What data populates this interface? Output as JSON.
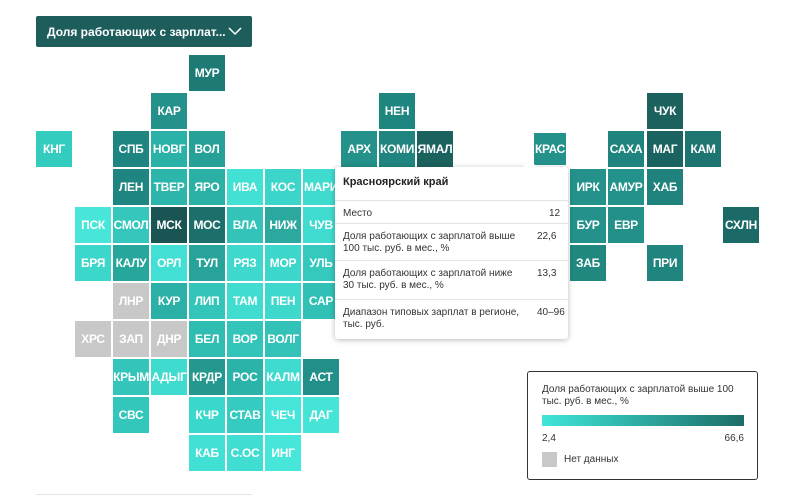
{
  "selector": {
    "label": "Доля работающих с зарплат..."
  },
  "colors": {
    "accent": "#1d5e5c",
    "scale_min": "#3fe6d9",
    "scale_max": "#1c6d68",
    "no_data": "#c8c8c8"
  },
  "regions": [
    {
      "code": "МУР",
      "shade": "#1d7a75"
    },
    {
      "code": "КАР",
      "shade": "#24918a"
    },
    {
      "code": "НЕН",
      "shade": "#1f857f"
    },
    {
      "code": "ЧУК",
      "shade": "#1b615e"
    },
    {
      "code": "КНГ",
      "shade": "#35ccc0"
    },
    {
      "code": "СПБ",
      "shade": "#1f8580"
    },
    {
      "code": "НОВГ",
      "shade": "#2bb2a8"
    },
    {
      "code": "ВОЛ",
      "shade": "#27a197"
    },
    {
      "code": "АРХ",
      "shade": "#24918a"
    },
    {
      "code": "КОМИ",
      "shade": "#21857f"
    },
    {
      "code": "ЯМАЛ",
      "shade": "#1b625f"
    },
    {
      "code": "КРАС",
      "shade": "#24928b"
    },
    {
      "code": "САХА",
      "shade": "#1f847e"
    },
    {
      "code": "МАГ",
      "shade": "#1b6360"
    },
    {
      "code": "КАМ",
      "shade": "#1d7470"
    },
    {
      "code": "ЛЕН",
      "shade": "#1f8580"
    },
    {
      "code": "ТВЕР",
      "shade": "#2cb5aa"
    },
    {
      "code": "ЯРО",
      "shade": "#2bb0a6"
    },
    {
      "code": "ИВА",
      "shade": "#43e0d4"
    },
    {
      "code": "КОС",
      "shade": "#3bd5c9"
    },
    {
      "code": "МАРИ",
      "shade": "#40dbcf"
    },
    {
      "code": "ИРК",
      "shade": "#24928b"
    },
    {
      "code": "АМУР",
      "shade": "#23928b"
    },
    {
      "code": "ХАБ",
      "shade": "#1f827c"
    },
    {
      "code": "ПСК",
      "shade": "#48e6d9"
    },
    {
      "code": "СМОЛ",
      "shade": "#36c7bc"
    },
    {
      "code": "МСК",
      "shade": "#1b5553"
    },
    {
      "code": "МОС",
      "shade": "#1d6f6b"
    },
    {
      "code": "ВЛА",
      "shade": "#33c3b8"
    },
    {
      "code": "НИЖ",
      "shade": "#2ba99f"
    },
    {
      "code": "ЧУВ",
      "shade": "#40dcd0"
    },
    {
      "code": "БУР",
      "shade": "#24918a"
    },
    {
      "code": "ЕВР",
      "shade": "#23908a"
    },
    {
      "code": "СХЛН",
      "shade": "#1c6a67"
    },
    {
      "code": "БРЯ",
      "shade": "#3cd7cb"
    },
    {
      "code": "КАЛУ",
      "shade": "#27a69c"
    },
    {
      "code": "ОРЛ",
      "shade": "#42e0d4"
    },
    {
      "code": "ТУЛ",
      "shade": "#27a39a"
    },
    {
      "code": "РЯЗ",
      "shade": "#3ed8cc"
    },
    {
      "code": "МОР",
      "shade": "#3dd6ca"
    },
    {
      "code": "УЛЬ",
      "shade": "#35c9be"
    },
    {
      "code": "ЗАБ",
      "shade": "#21887f"
    },
    {
      "code": "ПРИ",
      "shade": "#21857f"
    },
    {
      "code": "ЛНР",
      "shade": "#c8c8c8"
    },
    {
      "code": "КУР",
      "shade": "#2ab0a6"
    },
    {
      "code": "ЛИП",
      "shade": "#34c5ba"
    },
    {
      "code": "ТАМ",
      "shade": "#40dcd0"
    },
    {
      "code": "ПЕН",
      "shade": "#3ed8cc"
    },
    {
      "code": "САР",
      "shade": "#31c0b5"
    },
    {
      "code": "ХРС",
      "shade": "#c8c8c8"
    },
    {
      "code": "ЗАП",
      "shade": "#c8c8c8"
    },
    {
      "code": "ДНР",
      "shade": "#c8c8c8"
    },
    {
      "code": "БЕЛ",
      "shade": "#2fbcb1"
    },
    {
      "code": "ВОР",
      "shade": "#34c5ba"
    },
    {
      "code": "ВОЛГ",
      "shade": "#33c2b7"
    },
    {
      "code": "КРЫМ",
      "shade": "#33c5ba"
    },
    {
      "code": "АДЫГ",
      "shade": "#3fdbcf"
    },
    {
      "code": "КРДР",
      "shade": "#24988f"
    },
    {
      "code": "РОС",
      "shade": "#2cb3a9"
    },
    {
      "code": "КАЛМ",
      "shade": "#3fdbcf"
    },
    {
      "code": "АСТ",
      "shade": "#229088"
    },
    {
      "code": "СВС",
      "shade": "#33c6bb"
    },
    {
      "code": "КЧР",
      "shade": "#3ad8cc"
    },
    {
      "code": "СТАВ",
      "shade": "#35cbc0"
    },
    {
      "code": "ЧЕЧ",
      "shade": "#45e6d9"
    },
    {
      "code": "ДАГ",
      "shade": "#45e4d7"
    },
    {
      "code": "КАБ",
      "shade": "#41e0d4"
    },
    {
      "code": "С.ОС",
      "shade": "#40ded2"
    },
    {
      "code": "ИНГ",
      "shade": "#46e6da"
    }
  ],
  "tooltip": {
    "title": "Красноярский край",
    "rows": [
      {
        "label": "Место",
        "value": "12"
      },
      {
        "label": "Доля работающих с зарплатой выше 100 тыс. руб. в мес., %",
        "value": "22,6"
      },
      {
        "label": "Доля работающих с зарплатой ниже 30 тыс. руб. в мес., %",
        "value": "13,3"
      },
      {
        "label": "Диапазон типовых зарплат в регионе, тыс. руб.",
        "value": "40–96"
      }
    ]
  },
  "legend": {
    "title": "Доля работающих с зарплатой выше 100 тыс. руб. в мес., %",
    "min": "2,4",
    "max": "66,6",
    "no_data": "Нет данных"
  }
}
